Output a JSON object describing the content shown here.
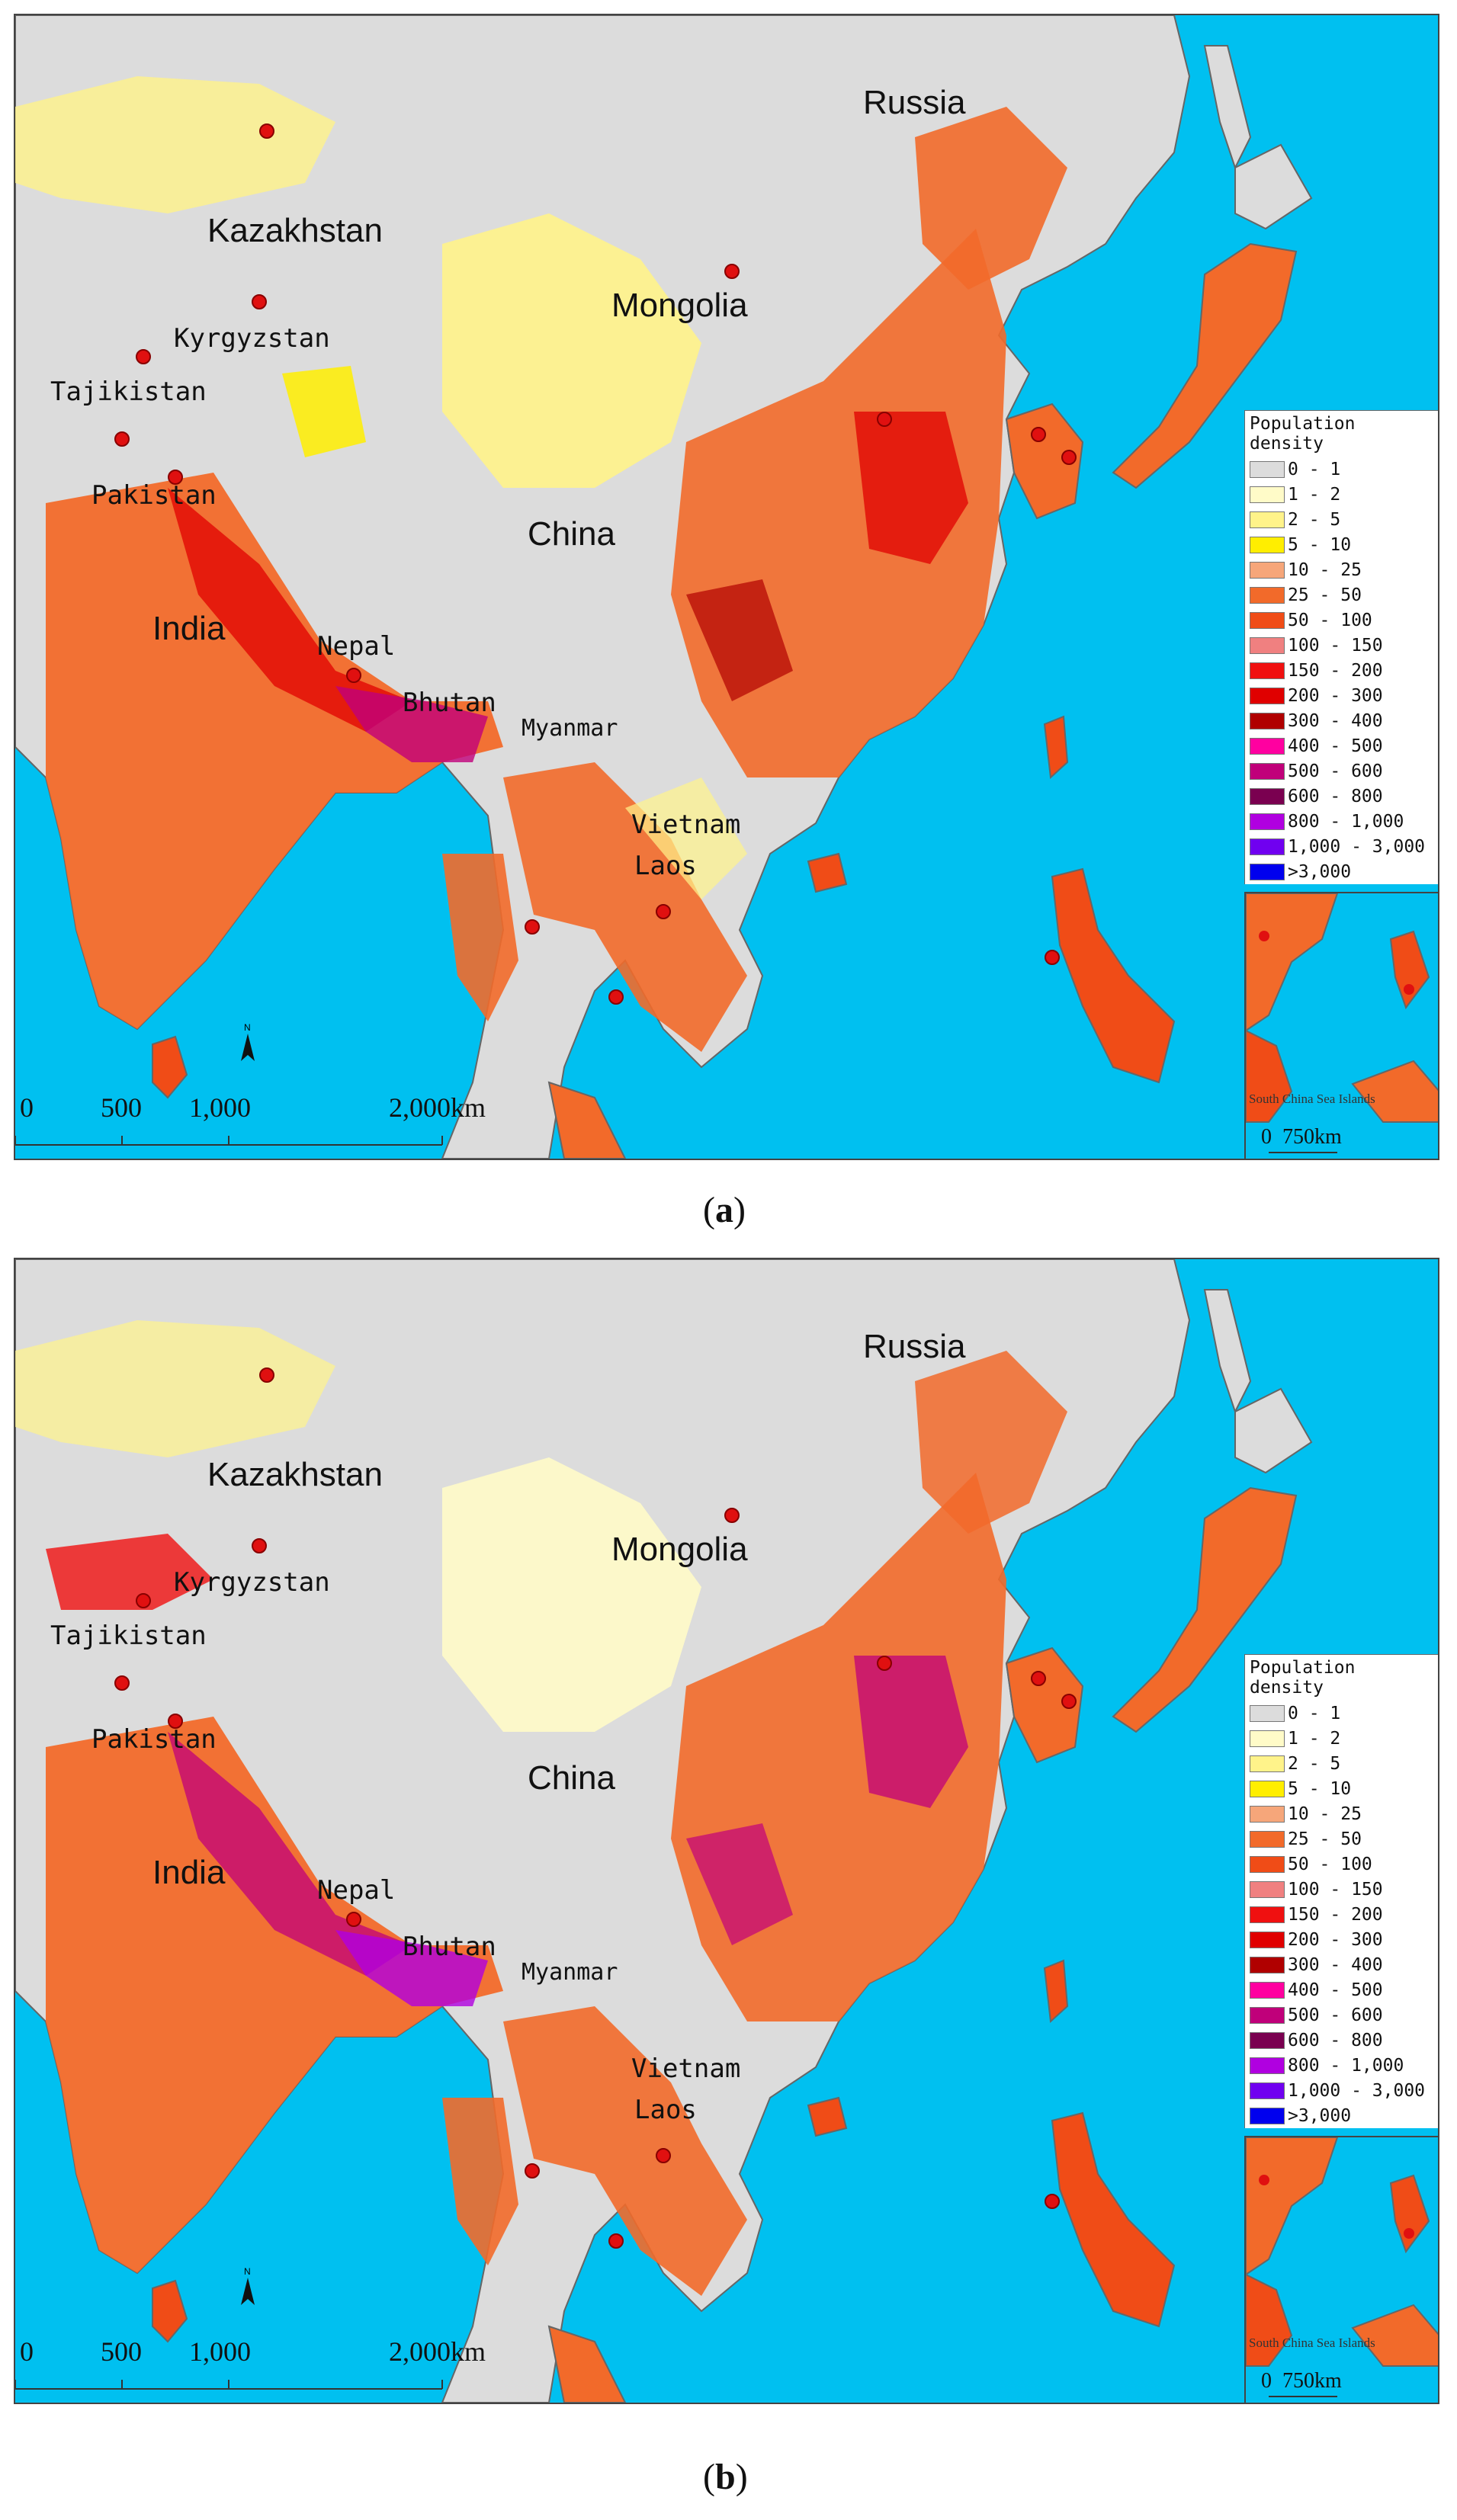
{
  "panels": [
    {
      "id": "a",
      "caption_letter": "a",
      "labels": {
        "russia": "Russia",
        "kazakhstan": "Kazakhstan",
        "mongolia": "Mongolia",
        "kyrgyzstan": "Kyrgyzstan",
        "tajikistan": "Tajikistan",
        "pakistan": "Pakistan",
        "china": "China",
        "india": "India",
        "nepal": "Nepal",
        "bhutan": "Bhutan",
        "myanmar": "Myanmar",
        "vietnam": "Vietnam",
        "laos": "Laos"
      }
    },
    {
      "id": "b",
      "caption_letter": "b",
      "labels": {
        "russia": "Russia",
        "kazakhstan": "Kazakhstan",
        "mongolia": "Mongolia",
        "kyrgyzstan": "Kyrgyzstan",
        "tajikistan": "Tajikistan",
        "pakistan": "Pakistan",
        "china": "China",
        "india": "India",
        "nepal": "Nepal",
        "bhutan": "Bhutan",
        "myanmar": "Myanmar",
        "vietnam": "Vietnam",
        "laos": "Laos"
      }
    }
  ],
  "legend": {
    "title": "Population density",
    "classes": [
      {
        "label": "0 - 1",
        "color": "#dcdcdc"
      },
      {
        "label": "1 - 2",
        "color": "#fffbc8"
      },
      {
        "label": "2 - 5",
        "color": "#fff38a"
      },
      {
        "label": "5 - 10",
        "color": "#ffee00"
      },
      {
        "label": "10 - 25",
        "color": "#f6a67a"
      },
      {
        "label": "25 - 50",
        "color": "#f26a2a"
      },
      {
        "label": "50 - 100",
        "color": "#f04c17"
      },
      {
        "label": "100 - 150",
        "color": "#f08080"
      },
      {
        "label": "150 - 200",
        "color": "#f01010"
      },
      {
        "label": "200 - 300",
        "color": "#e00000"
      },
      {
        "label": "300 - 400",
        "color": "#b00000"
      },
      {
        "label": "400 - 500",
        "color": "#ff00a0"
      },
      {
        "label": "500 - 600",
        "color": "#c0007a"
      },
      {
        "label": "600 - 800",
        "color": "#7a0050"
      },
      {
        "label": "800 - 1,000",
        "color": "#b000e0"
      },
      {
        "label": "1,000 - 3,000",
        "color": "#7000f0"
      },
      {
        "label": ">3,000",
        "color": "#0000ee"
      }
    ]
  },
  "scale_bar": {
    "ticks": [
      "0",
      "500",
      "1,000",
      "2,000"
    ],
    "unit": "km"
  },
  "inset": {
    "title": "South China Sea Islands",
    "scale_zero": "0",
    "scale_label": "750km"
  },
  "colors": {
    "sea": "#00c0f0",
    "land_base": "#dcdcdc",
    "capital_marker": "#e01010"
  }
}
